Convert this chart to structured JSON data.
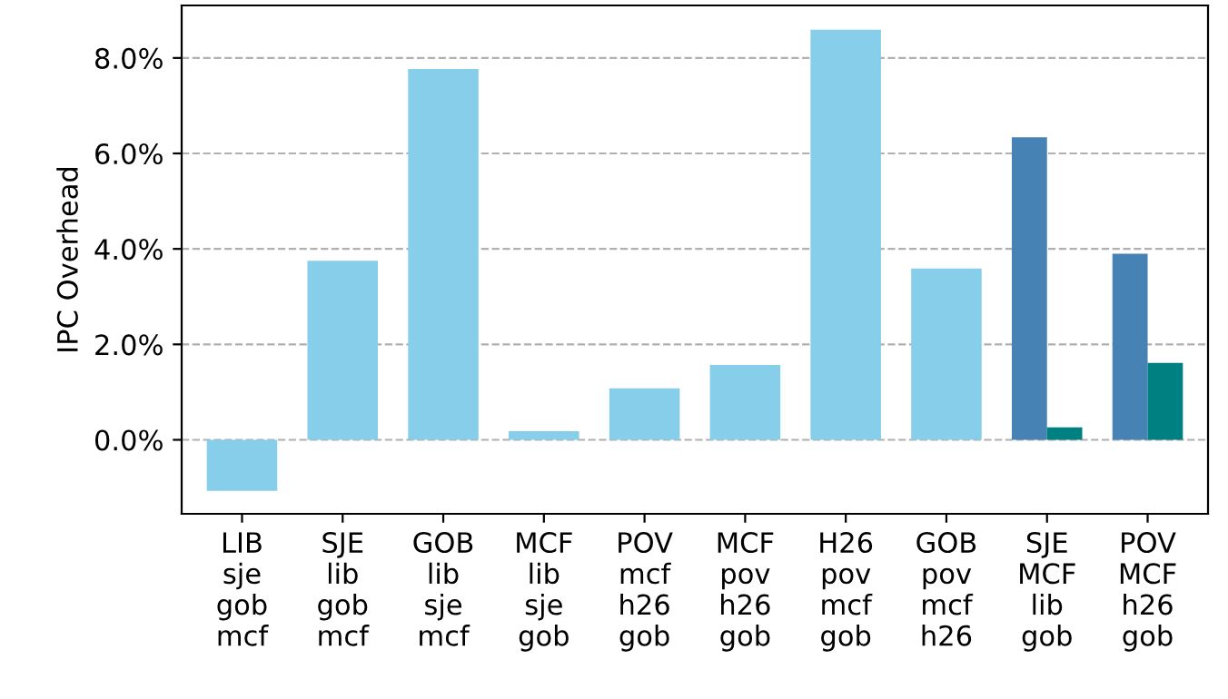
{
  "chart_data": {
    "type": "bar",
    "ylabel": "IPC Overhead",
    "categories": [
      "LIB\nsje\ngob\nmcf",
      "SJE\nlib\ngob\nmcf",
      "GOB\nlib\nsje\nmcf",
      "MCF\nlib\nsje\ngob",
      "POV\nmcf\nh26\ngob",
      "MCF\npov\nh26\ngob",
      "H26\npov\nmcf\ngob",
      "GOB\npov\nmcf\nh26",
      "SJE\nMCF\nlib\ngob",
      "POV\nMCF\nh26\ngob"
    ],
    "series": [
      {
        "color": "#87ceeb",
        "values": [
          -1.07,
          3.75,
          7.77,
          0.18,
          1.08,
          1.57,
          8.59,
          3.59,
          null,
          null
        ]
      },
      {
        "color": "#4682b4",
        "values": [
          null,
          null,
          null,
          null,
          null,
          null,
          null,
          null,
          6.34,
          3.9
        ]
      },
      {
        "color": "#008080",
        "values": [
          null,
          null,
          null,
          null,
          null,
          null,
          null,
          null,
          0.26,
          1.61
        ]
      }
    ],
    "ylim": [
      -1.55,
      9.1
    ],
    "yticks": [
      {
        "value": 0,
        "label": "0.0%"
      },
      {
        "value": 2,
        "label": "2.0%"
      },
      {
        "value": 4,
        "label": "4.0%"
      },
      {
        "value": 6,
        "label": "6.0%"
      },
      {
        "value": 8,
        "label": "8.0%"
      }
    ],
    "grid": "y",
    "line_style": "dashed"
  }
}
